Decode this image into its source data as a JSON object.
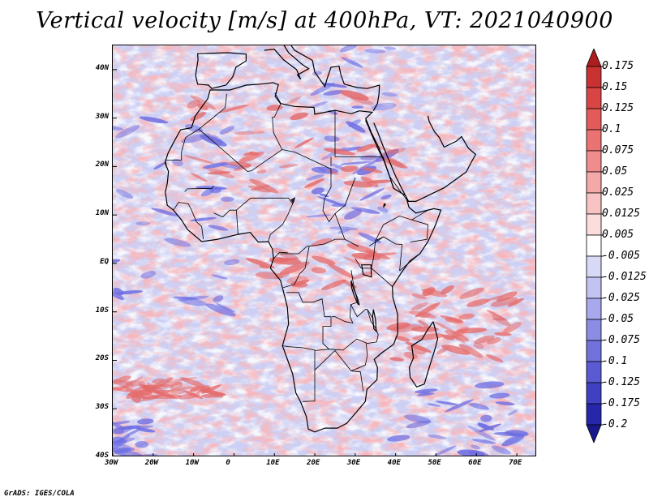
{
  "title": "Vertical velocity [m/s] at 400hPa, VT: 2021040900",
  "credit": "GrADS: IGES/COLA",
  "lat_labels": [
    {
      "text": "40N",
      "lat": 40
    },
    {
      "text": "30N",
      "lat": 30
    },
    {
      "text": "20N",
      "lat": 20
    },
    {
      "text": "10N",
      "lat": 10
    },
    {
      "text": "EQ",
      "lat": 0
    },
    {
      "text": "10S",
      "lat": -10
    },
    {
      "text": "20S",
      "lat": -20
    },
    {
      "text": "30S",
      "lat": -30
    },
    {
      "text": "40S",
      "lat": -40
    }
  ],
  "lon_labels": [
    {
      "text": "30W",
      "lon": -30
    },
    {
      "text": "20W",
      "lon": -20
    },
    {
      "text": "10W",
      "lon": -10
    },
    {
      "text": "0",
      "lon": 0
    },
    {
      "text": "10E",
      "lon": 10
    },
    {
      "text": "20E",
      "lon": 20
    },
    {
      "text": "30E",
      "lon": 30
    },
    {
      "text": "40E",
      "lon": 40
    },
    {
      "text": "50E",
      "lon": 50
    },
    {
      "text": "60E",
      "lon": 60
    },
    {
      "text": "70E",
      "lon": 70
    }
  ],
  "colorbar": {
    "labels": [
      "0.175",
      "0.15",
      "0.125",
      "0.1",
      "0.075",
      "0.05",
      "0.025",
      "0.0125",
      "0.005",
      "-0.005",
      "-0.0125",
      "-0.025",
      "-0.05",
      "-0.075",
      "-0.1",
      "-0.125",
      "-0.175",
      "-0.2"
    ],
    "colors": [
      "#ad1e1e",
      "#c83232",
      "#d94545",
      "#e35a5a",
      "#ea7272",
      "#f08c8c",
      "#f5a8a8",
      "#f8c3c3",
      "#fbdddd",
      "#ffffff",
      "#d8d8f7",
      "#c3c3f2",
      "#a8a8ec",
      "#8c8ce4",
      "#7272dc",
      "#5a5ad2",
      "#4040c3",
      "#2626aa",
      "#18188c"
    ]
  },
  "map": {
    "lon_range": [
      -30,
      75
    ],
    "lat_range": [
      -40,
      45
    ],
    "background_color": "#cdd0f4",
    "field_colors": {
      "ascent": "#e46a6a",
      "weak": "#ffffff",
      "descent": "#6c6ce2"
    }
  }
}
